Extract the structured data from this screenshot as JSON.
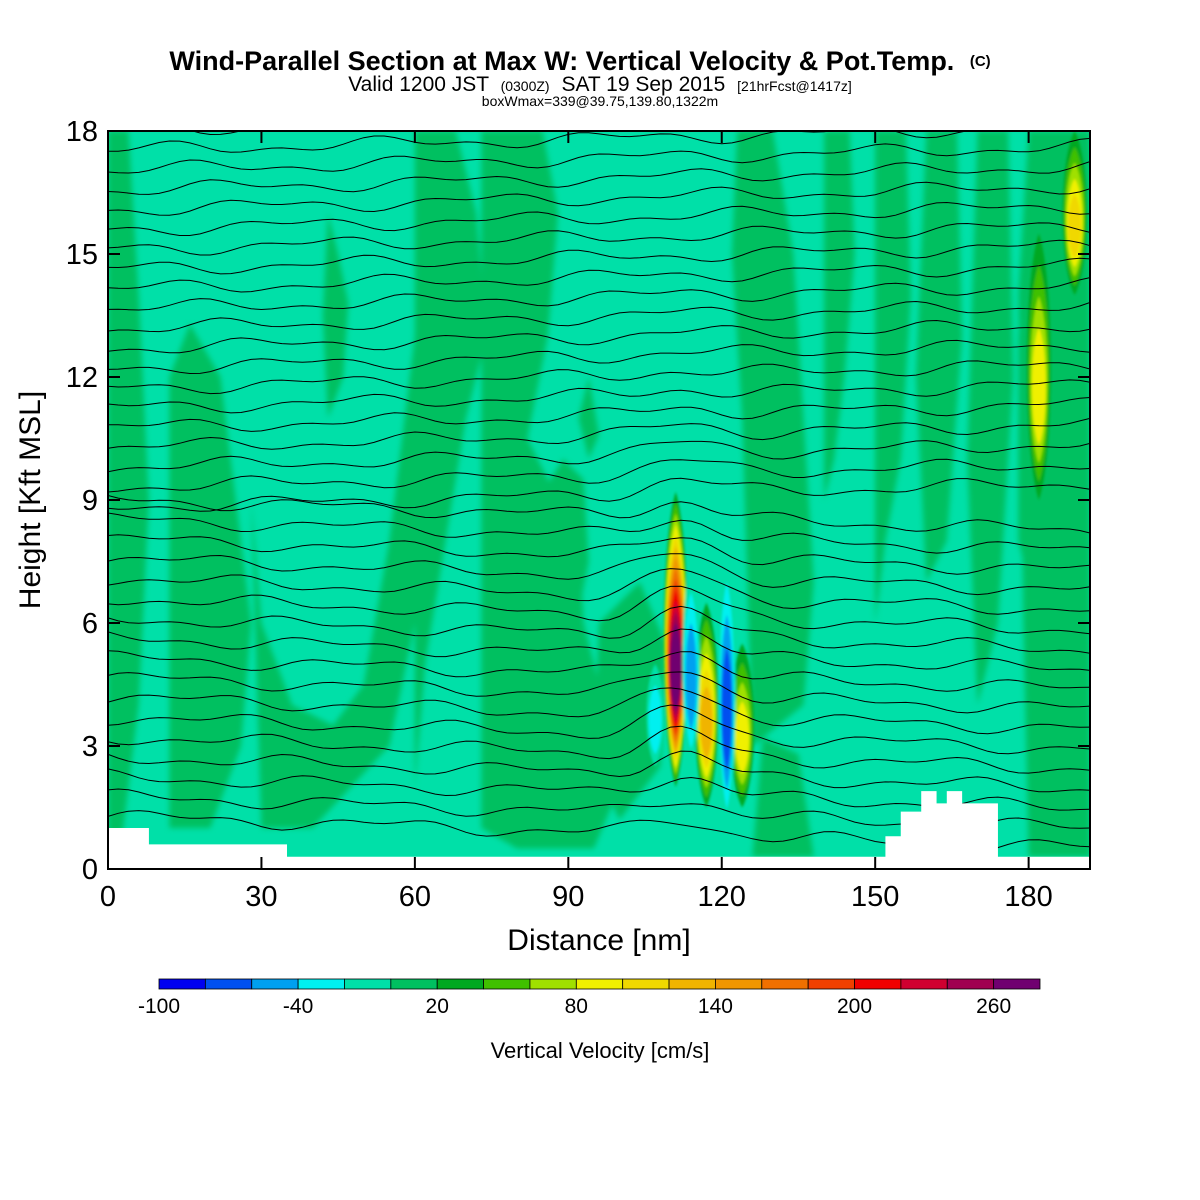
{
  "chart_data": {
    "type": "contour",
    "title": "Wind-Parallel Section at Max W: Vertical Velocity & Pot.Temp.",
    "title_mark": "(C)",
    "subtitle": {
      "prefix": "Valid 1200 JST",
      "utc": "(0300Z)",
      "date": "SAT 19 Sep 2015",
      "forecast": "[21hrFcst@1417z]"
    },
    "subtitle2": "boxWmax=339@39.75,139.80,1322m",
    "xlabel": "Distance [nm]",
    "ylabel": "Height [Kft MSL]",
    "xlim": [
      0,
      192
    ],
    "ylim": [
      0,
      18
    ],
    "x_ticks": [
      "0",
      "30",
      "60",
      "90",
      "120",
      "150",
      "180"
    ],
    "y_ticks": [
      "0",
      "3",
      "6",
      "9",
      "12",
      "15",
      "18"
    ],
    "colorbar": {
      "title": "Vertical Velocity [cm/s]",
      "labels": [
        "-100",
        "-40",
        "20",
        "80",
        "140",
        "200",
        "260"
      ],
      "levels": [
        -100,
        -80,
        -60,
        -40,
        -20,
        0,
        20,
        40,
        60,
        80,
        100,
        120,
        140,
        160,
        180,
        200,
        220,
        240,
        260,
        280
      ],
      "colors": [
        "#0000f0",
        "#0050f0",
        "#00a0f0",
        "#00f0f0",
        "#00e0a8",
        "#00c060",
        "#00a820",
        "#40c000",
        "#a0e000",
        "#f0f000",
        "#f0d800",
        "#f0b400",
        "#f09600",
        "#f07000",
        "#f04000",
        "#f00000",
        "#d00030",
        "#a00050",
        "#700070"
      ]
    },
    "background_level_color": "#00e0a8",
    "updraft_band_color": "#00c060",
    "terrain_color": "#ffffff",
    "features": [
      {
        "name": "updraft core",
        "x": 111,
        "y_range": [
          2.0,
          9.2
        ],
        "peak": 280
      },
      {
        "name": "updraft",
        "x": 117,
        "y_range": [
          1.5,
          6.5
        ],
        "peak": 120
      },
      {
        "name": "updraft",
        "x": 124,
        "y_range": [
          1.5,
          5.5
        ],
        "peak": 80
      },
      {
        "name": "downdraft",
        "x": 114,
        "y_range": [
          2.5,
          7.5
        ],
        "peak": -40
      },
      {
        "name": "downdraft",
        "x": 121,
        "y_range": [
          1.0,
          7.8
        ],
        "peak": -60
      },
      {
        "name": "downdraft",
        "x": 107,
        "y_range": [
          2.5,
          5.0
        ],
        "peak": -30
      },
      {
        "name": "updraft",
        "x": 182,
        "y_range": [
          9.0,
          15.5
        ],
        "peak": 90
      },
      {
        "name": "updraft",
        "x": 189,
        "y_range": [
          14.0,
          18.0
        ],
        "peak": 100
      }
    ],
    "terrain_x": [
      0,
      7,
      8,
      34,
      35,
      151,
      152,
      155,
      159,
      162,
      164,
      167,
      172,
      174,
      192
    ],
    "terrain_y": [
      1.0,
      1.0,
      0.6,
      0.6,
      0.3,
      0.3,
      0.8,
      1.4,
      1.9,
      1.6,
      1.9,
      1.6,
      1.6,
      0.3,
      0.3
    ],
    "isentrope_count": 37
  }
}
